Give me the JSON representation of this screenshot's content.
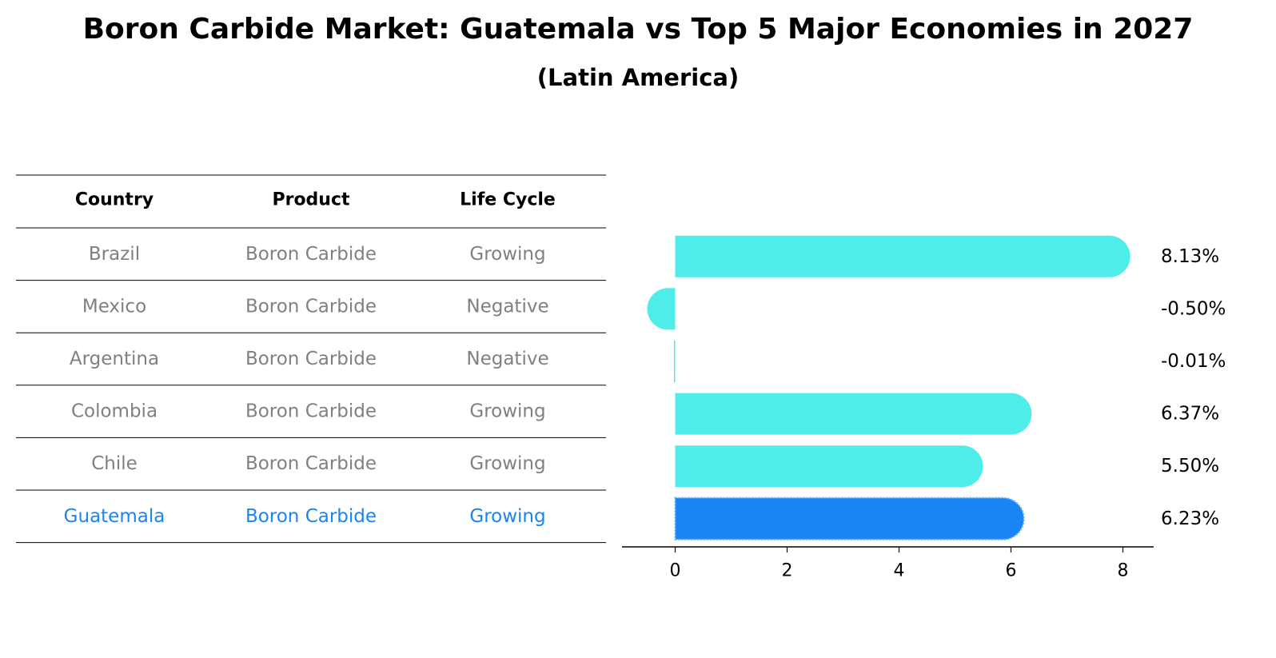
{
  "title": "Boron Carbide Market: Guatemala vs Top 5 Major Economies in 2027",
  "subtitle": "(Latin America)",
  "table": {
    "headers": [
      "Country",
      "Product",
      "Life Cycle"
    ],
    "rows": [
      {
        "country": "Brazil",
        "product": "Boron Carbide",
        "life_cycle": "Growing",
        "highlight": false
      },
      {
        "country": "Mexico",
        "product": "Boron Carbide",
        "life_cycle": "Negative",
        "highlight": false
      },
      {
        "country": "Argentina",
        "product": "Boron Carbide",
        "life_cycle": "Negative",
        "highlight": false
      },
      {
        "country": "Colombia",
        "product": "Boron Carbide",
        "life_cycle": "Growing",
        "highlight": false
      },
      {
        "country": "Chile",
        "product": "Boron Carbide",
        "life_cycle": "Growing",
        "highlight": false
      },
      {
        "country": "Guatemala",
        "product": "Boron Carbide",
        "life_cycle": "Growing",
        "highlight": true
      }
    ]
  },
  "chart_data": {
    "type": "bar",
    "orientation": "horizontal",
    "categories": [
      "Brazil",
      "Mexico",
      "Argentina",
      "Colombia",
      "Chile",
      "Guatemala"
    ],
    "values": [
      8.13,
      -0.5,
      -0.01,
      6.37,
      5.5,
      6.23
    ],
    "value_labels": [
      "8.13%",
      "-0.50%",
      "-0.01%",
      "6.37%",
      "5.50%",
      "6.23%"
    ],
    "highlight_index": 5,
    "xlim": [
      -0.95,
      8.55
    ],
    "xticks": [
      0,
      2,
      4,
      6,
      8
    ],
    "xtick_labels": [
      "0",
      "2",
      "4",
      "6",
      "8"
    ],
    "grid": false,
    "xlabel": "",
    "ylabel": ""
  },
  "colors": {
    "bar": "#4eedea",
    "highlight_bar": "#1a84f5",
    "highlight_text": "#1a84f5",
    "muted_text": "#808080",
    "text": "#000000",
    "rule": "#000000"
  }
}
